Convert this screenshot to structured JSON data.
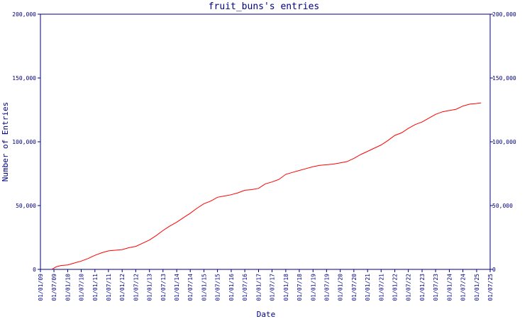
{
  "chart_data": {
    "type": "line",
    "title": "fruit_buns's entries",
    "xlabel": "Date",
    "ylabel": "Number of Entries",
    "ylim": [
      0,
      200000
    ],
    "xlim": [
      "2009-01-01",
      "2025-07-01"
    ],
    "y_ticks": [
      {
        "value": 0,
        "label": "0"
      },
      {
        "value": 50000,
        "label": "50,000"
      },
      {
        "value": 100000,
        "label": "100,000"
      },
      {
        "value": 150000,
        "label": "150,000"
      },
      {
        "value": 200000,
        "label": "200,000"
      }
    ],
    "x_ticks": [
      {
        "date": "2009-01-01",
        "label": "01/01/09"
      },
      {
        "date": "2009-07-01",
        "label": "01/07/09"
      },
      {
        "date": "2010-01-01",
        "label": "01/01/10"
      },
      {
        "date": "2010-07-01",
        "label": "01/07/10"
      },
      {
        "date": "2011-01-01",
        "label": "01/01/11"
      },
      {
        "date": "2011-07-01",
        "label": "01/07/11"
      },
      {
        "date": "2012-01-01",
        "label": "01/01/12"
      },
      {
        "date": "2012-07-01",
        "label": "01/07/12"
      },
      {
        "date": "2013-01-01",
        "label": "01/01/13"
      },
      {
        "date": "2013-07-01",
        "label": "01/07/13"
      },
      {
        "date": "2014-01-01",
        "label": "01/01/14"
      },
      {
        "date": "2014-07-01",
        "label": "01/07/14"
      },
      {
        "date": "2015-01-01",
        "label": "01/01/15"
      },
      {
        "date": "2015-07-01",
        "label": "01/07/15"
      },
      {
        "date": "2016-01-01",
        "label": "01/01/16"
      },
      {
        "date": "2016-07-01",
        "label": "01/07/16"
      },
      {
        "date": "2017-01-01",
        "label": "01/01/17"
      },
      {
        "date": "2017-07-01",
        "label": "01/07/17"
      },
      {
        "date": "2018-01-01",
        "label": "01/01/18"
      },
      {
        "date": "2018-07-01",
        "label": "01/07/18"
      },
      {
        "date": "2019-01-01",
        "label": "01/01/19"
      },
      {
        "date": "2019-07-01",
        "label": "01/07/19"
      },
      {
        "date": "2020-01-01",
        "label": "01/01/20"
      },
      {
        "date": "2020-07-01",
        "label": "01/07/20"
      },
      {
        "date": "2021-01-01",
        "label": "01/01/21"
      },
      {
        "date": "2021-07-01",
        "label": "01/07/21"
      },
      {
        "date": "2022-01-01",
        "label": "01/01/22"
      },
      {
        "date": "2022-07-01",
        "label": "01/07/22"
      },
      {
        "date": "2023-01-01",
        "label": "01/01/23"
      },
      {
        "date": "2023-07-01",
        "label": "01/07/23"
      },
      {
        "date": "2024-01-01",
        "label": "01/01/24"
      },
      {
        "date": "2024-07-01",
        "label": "01/07/24"
      },
      {
        "date": "2025-01-01",
        "label": "01/01/25"
      },
      {
        "date": "2025-07-01",
        "label": "01/07/25"
      }
    ],
    "grid": false,
    "line_color": "#ff0000",
    "axis_color": "#000080",
    "series": [
      {
        "points": [
          {
            "date": "2009-06-01",
            "y": 0
          },
          {
            "date": "2009-08-01",
            "y": 2000
          },
          {
            "date": "2009-10-01",
            "y": 3000
          },
          {
            "date": "2010-01-01",
            "y": 3500
          },
          {
            "date": "2010-04-01",
            "y": 5000
          },
          {
            "date": "2010-07-01",
            "y": 6500
          },
          {
            "date": "2010-10-01",
            "y": 8500
          },
          {
            "date": "2011-01-01",
            "y": 11000
          },
          {
            "date": "2011-04-01",
            "y": 13000
          },
          {
            "date": "2011-07-01",
            "y": 14500
          },
          {
            "date": "2011-10-01",
            "y": 15000
          },
          {
            "date": "2012-01-01",
            "y": 15500
          },
          {
            "date": "2012-04-01",
            "y": 17000
          },
          {
            "date": "2012-07-01",
            "y": 18000
          },
          {
            "date": "2012-10-01",
            "y": 20500
          },
          {
            "date": "2013-01-01",
            "y": 23000
          },
          {
            "date": "2013-04-01",
            "y": 26500
          },
          {
            "date": "2013-07-01",
            "y": 30500
          },
          {
            "date": "2013-10-01",
            "y": 34000
          },
          {
            "date": "2014-01-01",
            "y": 37000
          },
          {
            "date": "2014-04-01",
            "y": 40500
          },
          {
            "date": "2014-07-01",
            "y": 44000
          },
          {
            "date": "2014-10-01",
            "y": 48000
          },
          {
            "date": "2015-01-01",
            "y": 51500
          },
          {
            "date": "2015-04-01",
            "y": 53500
          },
          {
            "date": "2015-07-01",
            "y": 56500
          },
          {
            "date": "2015-10-01",
            "y": 57500
          },
          {
            "date": "2016-01-01",
            "y": 58500
          },
          {
            "date": "2016-04-01",
            "y": 60000
          },
          {
            "date": "2016-07-01",
            "y": 62000
          },
          {
            "date": "2016-10-01",
            "y": 62500
          },
          {
            "date": "2017-01-01",
            "y": 63500
          },
          {
            "date": "2017-04-01",
            "y": 67000
          },
          {
            "date": "2017-07-01",
            "y": 68500
          },
          {
            "date": "2017-10-01",
            "y": 70500
          },
          {
            "date": "2018-01-01",
            "y": 74500
          },
          {
            "date": "2018-04-01",
            "y": 76000
          },
          {
            "date": "2018-07-01",
            "y": 77500
          },
          {
            "date": "2018-10-01",
            "y": 79000
          },
          {
            "date": "2019-01-01",
            "y": 80500
          },
          {
            "date": "2019-04-01",
            "y": 81500
          },
          {
            "date": "2019-07-01",
            "y": 82000
          },
          {
            "date": "2019-10-01",
            "y": 82500
          },
          {
            "date": "2020-01-01",
            "y": 83500
          },
          {
            "date": "2020-04-01",
            "y": 84500
          },
          {
            "date": "2020-07-01",
            "y": 87000
          },
          {
            "date": "2020-10-01",
            "y": 90000
          },
          {
            "date": "2021-01-01",
            "y": 92500
          },
          {
            "date": "2021-04-01",
            "y": 95000
          },
          {
            "date": "2021-07-01",
            "y": 97500
          },
          {
            "date": "2021-10-01",
            "y": 101000
          },
          {
            "date": "2022-01-01",
            "y": 105000
          },
          {
            "date": "2022-04-01",
            "y": 107000
          },
          {
            "date": "2022-07-01",
            "y": 110500
          },
          {
            "date": "2022-10-01",
            "y": 113500
          },
          {
            "date": "2023-01-01",
            "y": 115500
          },
          {
            "date": "2023-04-01",
            "y": 118500
          },
          {
            "date": "2023-07-01",
            "y": 121500
          },
          {
            "date": "2023-10-01",
            "y": 123500
          },
          {
            "date": "2024-01-01",
            "y": 124500
          },
          {
            "date": "2024-04-01",
            "y": 125500
          },
          {
            "date": "2024-07-01",
            "y": 128000
          },
          {
            "date": "2024-10-01",
            "y": 129500
          },
          {
            "date": "2025-01-01",
            "y": 130000
          },
          {
            "date": "2025-03-01",
            "y": 130500
          }
        ]
      }
    ]
  }
}
